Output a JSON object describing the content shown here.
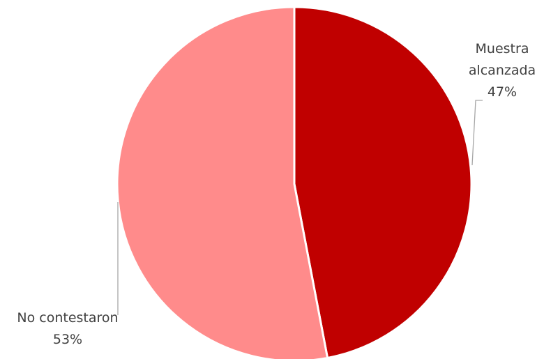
{
  "chart_data": {
    "type": "pie",
    "title": "",
    "categories": [
      "Muestra alcanzada",
      "No contestaron"
    ],
    "values": [
      47,
      53
    ],
    "unit": "%",
    "colors": [
      "#C00000",
      "#FF8B8B"
    ],
    "labels": [
      {
        "name_lines": [
          "Muestra",
          "alcanzada"
        ],
        "value_text": "47%"
      },
      {
        "name_lines": [
          "No contestaron"
        ],
        "value_text": "53%"
      }
    ],
    "legend": "none"
  }
}
